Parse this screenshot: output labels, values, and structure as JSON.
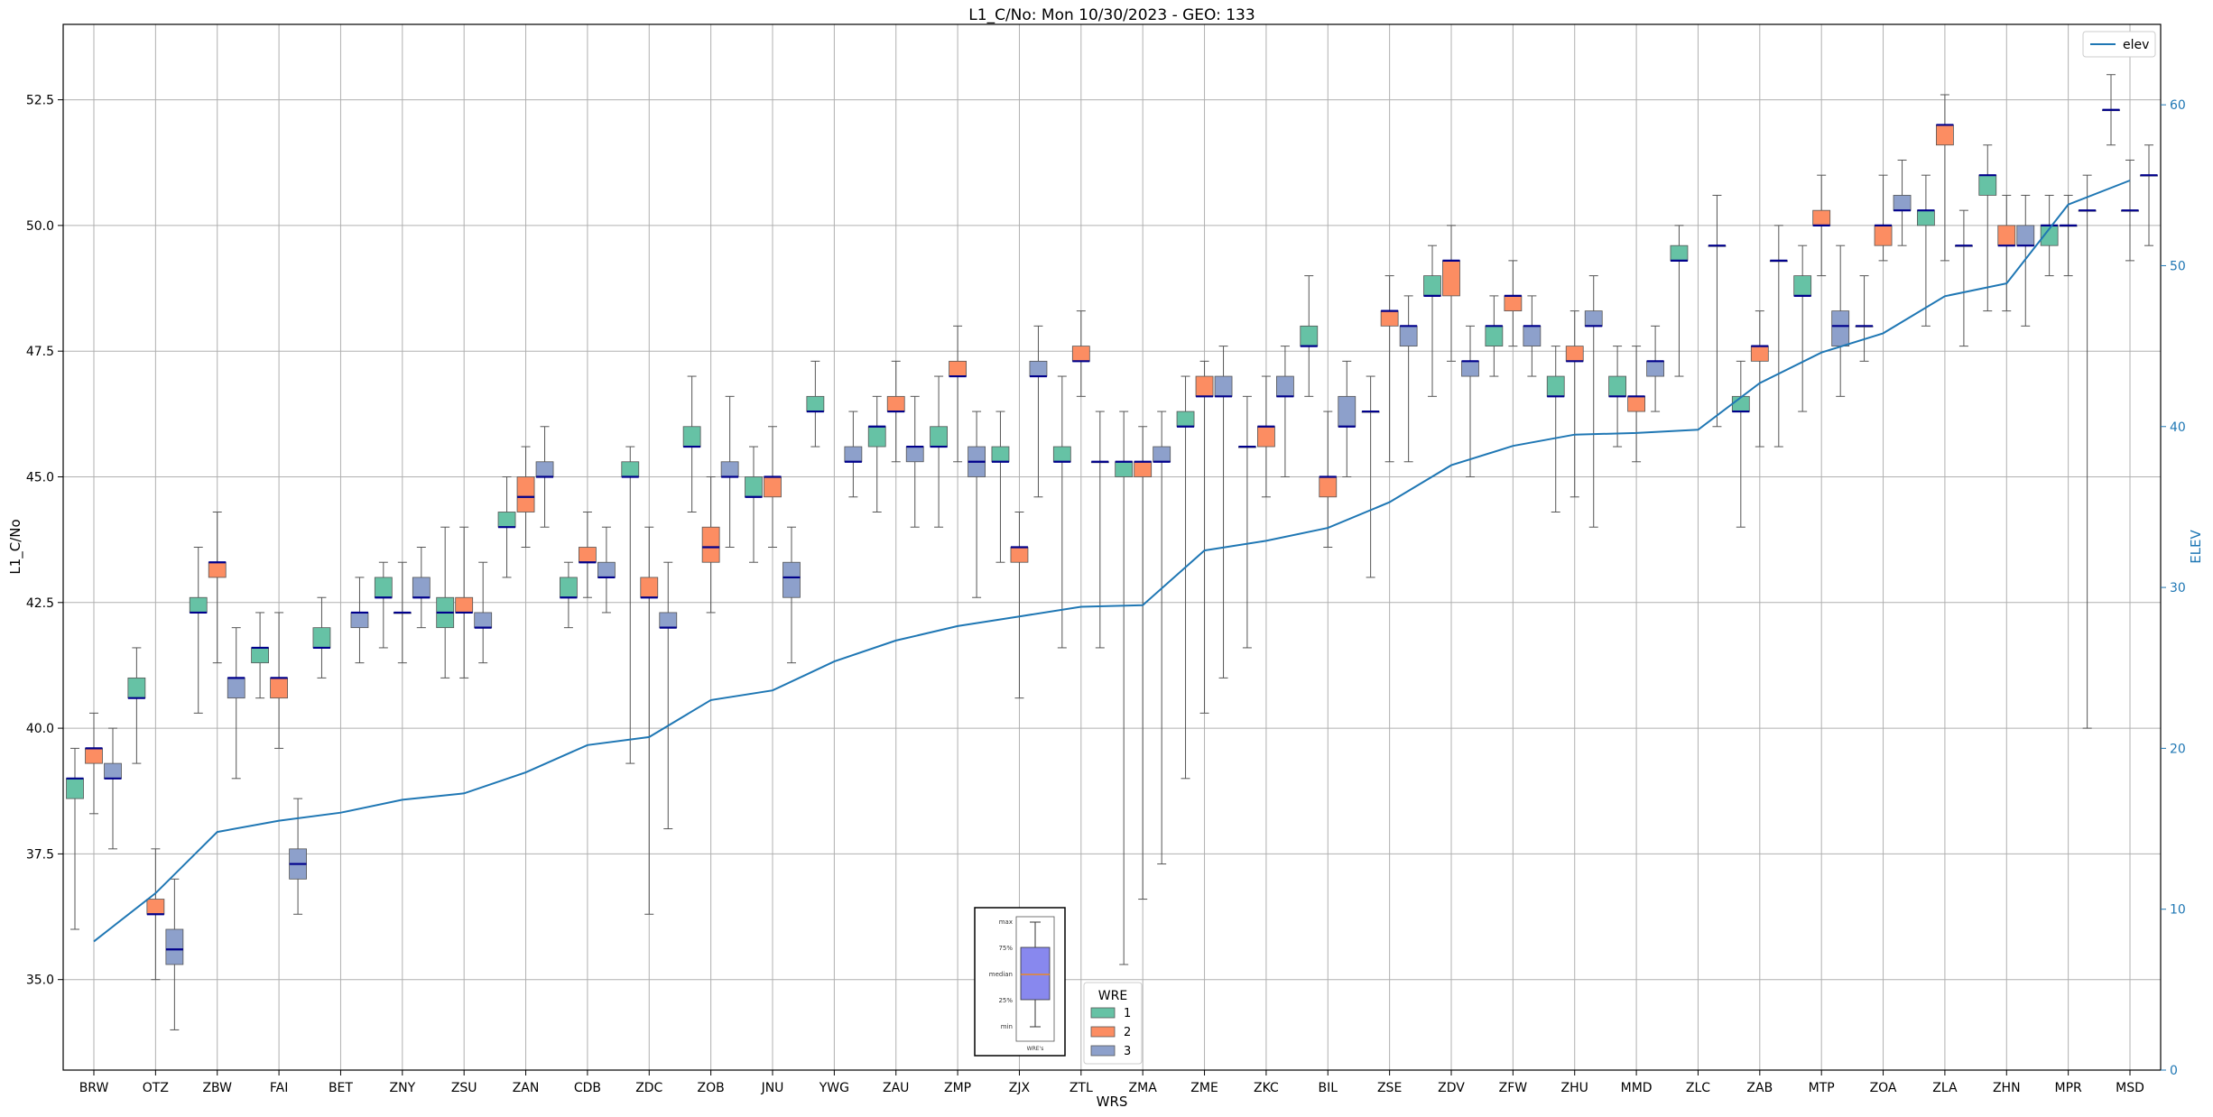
{
  "chart_data": {
    "type": "box",
    "title": "L1_C/No: Mon 10/30/2023 - GEO: 133",
    "xlabel": "WRS",
    "ylabel": "L1_C/No",
    "y2label": "ELEV",
    "ylim": [
      33.2,
      54.0
    ],
    "y2lim": [
      0,
      65
    ],
    "yticks": [
      "35.0",
      "37.5",
      "40.0",
      "42.5",
      "45.0",
      "47.5",
      "50.0",
      "52.5"
    ],
    "y2ticks": [
      "0",
      "10",
      "20",
      "30",
      "40",
      "50",
      "60"
    ],
    "grid": true,
    "categories": [
      "BRW",
      "OTZ",
      "ZBW",
      "FAI",
      "BET",
      "ZNY",
      "ZSU",
      "ZAN",
      "CDB",
      "ZDC",
      "ZOB",
      "JNU",
      "YWG",
      "ZAU",
      "ZMP",
      "ZJX",
      "ZTL",
      "ZMA",
      "ZME",
      "ZKC",
      "BIL",
      "ZSE",
      "ZDV",
      "ZFW",
      "ZHU",
      "MMD",
      "ZLC",
      "ZAB",
      "MTP",
      "ZOA",
      "ZLA",
      "ZHN",
      "MPR",
      "MSD"
    ],
    "legend": {
      "title": "WRE",
      "placement": "bottom-center",
      "entries": [
        {
          "label": "1",
          "color": "#66c2a5"
        },
        {
          "label": "2",
          "color": "#fc8d62"
        },
        {
          "label": "3",
          "color": "#8da0cb"
        }
      ]
    },
    "line_legend": {
      "label": "elev",
      "color": "#1f77b4",
      "placement": "top-right"
    },
    "inset_legend": {
      "labels": [
        "max",
        "75%",
        "median",
        "25%",
        "min"
      ],
      "xlabel": "WRE's",
      "fill": "#8888ee",
      "median_color": "#ff8800"
    },
    "boxes": [
      {
        "cat": "BRW",
        "wre": 1,
        "min": 36.0,
        "q1": 38.6,
        "med": 39.0,
        "q3": 39.0,
        "max": 39.6
      },
      {
        "cat": "BRW",
        "wre": 2,
        "min": 38.3,
        "q1": 39.3,
        "med": 39.6,
        "q3": 39.6,
        "max": 40.3
      },
      {
        "cat": "BRW",
        "wre": 3,
        "min": 37.6,
        "q1": 39.0,
        "med": 39.0,
        "q3": 39.3,
        "max": 40.0
      },
      {
        "cat": "OTZ",
        "wre": 1,
        "min": 39.3,
        "q1": 40.6,
        "med": 40.6,
        "q3": 41.0,
        "max": 41.6
      },
      {
        "cat": "OTZ",
        "wre": 2,
        "min": 35.0,
        "q1": 36.3,
        "med": 36.3,
        "q3": 36.6,
        "max": 37.6
      },
      {
        "cat": "OTZ",
        "wre": 3,
        "min": 34.0,
        "q1": 35.3,
        "med": 35.6,
        "q3": 36.0,
        "max": 37.0
      },
      {
        "cat": "ZBW",
        "wre": 1,
        "min": 40.3,
        "q1": 42.3,
        "med": 42.3,
        "q3": 42.6,
        "max": 43.6
      },
      {
        "cat": "ZBW",
        "wre": 2,
        "min": 41.3,
        "q1": 43.0,
        "med": 43.3,
        "q3": 43.3,
        "max": 44.3
      },
      {
        "cat": "ZBW",
        "wre": 3,
        "min": 39.0,
        "q1": 40.6,
        "med": 41.0,
        "q3": 41.0,
        "max": 42.0
      },
      {
        "cat": "FAI",
        "wre": 1,
        "min": 40.6,
        "q1": 41.3,
        "med": 41.6,
        "q3": 41.6,
        "max": 42.3
      },
      {
        "cat": "FAI",
        "wre": 2,
        "min": 39.6,
        "q1": 40.6,
        "med": 41.0,
        "q3": 41.0,
        "max": 42.3
      },
      {
        "cat": "FAI",
        "wre": 3,
        "min": 36.3,
        "q1": 37.0,
        "med": 37.3,
        "q3": 37.6,
        "max": 38.6
      },
      {
        "cat": "BET",
        "wre": 1,
        "min": 41.0,
        "q1": 41.6,
        "med": 41.6,
        "q3": 42.0,
        "max": 42.6
      },
      {
        "cat": "BET",
        "wre": 3,
        "min": 41.3,
        "q1": 42.0,
        "med": 42.3,
        "q3": 42.3,
        "max": 43.0
      },
      {
        "cat": "ZNY",
        "wre": 1,
        "min": 41.6,
        "q1": 42.6,
        "med": 42.6,
        "q3": 43.0,
        "max": 43.3
      },
      {
        "cat": "ZNY",
        "wre": 2,
        "min": 41.3,
        "q1": 42.3,
        "med": 42.3,
        "q3": 42.3,
        "max": 43.3
      },
      {
        "cat": "ZNY",
        "wre": 3,
        "min": 42.0,
        "q1": 42.6,
        "med": 42.6,
        "q3": 43.0,
        "max": 43.6
      },
      {
        "cat": "ZSU",
        "wre": 1,
        "min": 41.0,
        "q1": 42.0,
        "med": 42.3,
        "q3": 42.6,
        "max": 44.0
      },
      {
        "cat": "ZSU",
        "wre": 2,
        "min": 41.0,
        "q1": 42.3,
        "med": 42.3,
        "q3": 42.6,
        "max": 44.0
      },
      {
        "cat": "ZSU",
        "wre": 3,
        "min": 41.3,
        "q1": 42.0,
        "med": 42.0,
        "q3": 42.3,
        "max": 43.3
      },
      {
        "cat": "ZAN",
        "wre": 1,
        "min": 43.0,
        "q1": 44.0,
        "med": 44.0,
        "q3": 44.3,
        "max": 45.0
      },
      {
        "cat": "ZAN",
        "wre": 2,
        "min": 43.6,
        "q1": 44.3,
        "med": 44.6,
        "q3": 45.0,
        "max": 45.6
      },
      {
        "cat": "ZAN",
        "wre": 3,
        "min": 44.0,
        "q1": 45.0,
        "med": 45.0,
        "q3": 45.3,
        "max": 46.0
      },
      {
        "cat": "CDB",
        "wre": 1,
        "min": 42.0,
        "q1": 42.6,
        "med": 42.6,
        "q3": 43.0,
        "max": 43.3
      },
      {
        "cat": "CDB",
        "wre": 2,
        "min": 42.6,
        "q1": 43.3,
        "med": 43.3,
        "q3": 43.6,
        "max": 44.3
      },
      {
        "cat": "CDB",
        "wre": 3,
        "min": 42.3,
        "q1": 43.0,
        "med": 43.0,
        "q3": 43.3,
        "max": 44.0
      },
      {
        "cat": "ZDC",
        "wre": 1,
        "min": 39.3,
        "q1": 45.0,
        "med": 45.0,
        "q3": 45.3,
        "max": 45.6
      },
      {
        "cat": "ZDC",
        "wre": 2,
        "min": 36.3,
        "q1": 42.6,
        "med": 42.6,
        "q3": 43.0,
        "max": 44.0
      },
      {
        "cat": "ZDC",
        "wre": 3,
        "min": 38.0,
        "q1": 42.0,
        "med": 42.0,
        "q3": 42.3,
        "max": 43.3
      },
      {
        "cat": "ZOB",
        "wre": 1,
        "min": 44.3,
        "q1": 45.6,
        "med": 45.6,
        "q3": 46.0,
        "max": 47.0
      },
      {
        "cat": "ZOB",
        "wre": 2,
        "min": 42.3,
        "q1": 43.3,
        "med": 43.6,
        "q3": 44.0,
        "max": 45.0
      },
      {
        "cat": "ZOB",
        "wre": 3,
        "min": 43.6,
        "q1": 45.0,
        "med": 45.0,
        "q3": 45.3,
        "max": 46.6
      },
      {
        "cat": "JNU",
        "wre": 1,
        "min": 43.3,
        "q1": 44.6,
        "med": 44.6,
        "q3": 45.0,
        "max": 45.6
      },
      {
        "cat": "JNU",
        "wre": 2,
        "min": 43.6,
        "q1": 44.6,
        "med": 45.0,
        "q3": 45.0,
        "max": 46.0
      },
      {
        "cat": "JNU",
        "wre": 3,
        "min": 41.3,
        "q1": 42.6,
        "med": 43.0,
        "q3": 43.3,
        "max": 44.0
      },
      {
        "cat": "YWG",
        "wre": 1,
        "min": 45.6,
        "q1": 46.3,
        "med": 46.3,
        "q3": 46.6,
        "max": 47.3
      },
      {
        "cat": "YWG",
        "wre": 3,
        "min": 44.6,
        "q1": 45.3,
        "med": 45.3,
        "q3": 45.6,
        "max": 46.3
      },
      {
        "cat": "ZAU",
        "wre": 1,
        "min": 44.3,
        "q1": 45.6,
        "med": 46.0,
        "q3": 46.0,
        "max": 46.6
      },
      {
        "cat": "ZAU",
        "wre": 2,
        "min": 45.3,
        "q1": 46.3,
        "med": 46.3,
        "q3": 46.6,
        "max": 47.3
      },
      {
        "cat": "ZAU",
        "wre": 3,
        "min": 44.0,
        "q1": 45.3,
        "med": 45.6,
        "q3": 45.6,
        "max": 46.6
      },
      {
        "cat": "ZMP",
        "wre": 1,
        "min": 44.0,
        "q1": 45.6,
        "med": 45.6,
        "q3": 46.0,
        "max": 47.0
      },
      {
        "cat": "ZMP",
        "wre": 2,
        "min": 45.3,
        "q1": 47.0,
        "med": 47.0,
        "q3": 47.3,
        "max": 48.0
      },
      {
        "cat": "ZMP",
        "wre": 3,
        "min": 42.6,
        "q1": 45.0,
        "med": 45.3,
        "q3": 45.6,
        "max": 46.3
      },
      {
        "cat": "ZJX",
        "wre": 1,
        "min": 43.3,
        "q1": 45.3,
        "med": 45.3,
        "q3": 45.6,
        "max": 46.3
      },
      {
        "cat": "ZJX",
        "wre": 2,
        "min": 40.6,
        "q1": 43.3,
        "med": 43.6,
        "q3": 43.6,
        "max": 44.3
      },
      {
        "cat": "ZJX",
        "wre": 3,
        "min": 44.6,
        "q1": 47.0,
        "med": 47.0,
        "q3": 47.3,
        "max": 48.0
      },
      {
        "cat": "ZTL",
        "wre": 1,
        "min": 41.6,
        "q1": 45.3,
        "med": 45.3,
        "q3": 45.6,
        "max": 47.0
      },
      {
        "cat": "ZTL",
        "wre": 2,
        "min": 46.6,
        "q1": 47.3,
        "med": 47.3,
        "q3": 47.6,
        "max": 48.3
      },
      {
        "cat": "ZTL",
        "wre": 3,
        "min": 41.6,
        "q1": 45.3,
        "med": 45.3,
        "q3": 45.3,
        "max": 46.3
      },
      {
        "cat": "ZMA",
        "wre": 1,
        "min": 35.3,
        "q1": 45.0,
        "med": 45.3,
        "q3": 45.3,
        "max": 46.3
      },
      {
        "cat": "ZMA",
        "wre": 2,
        "min": 36.6,
        "q1": 45.0,
        "med": 45.3,
        "q3": 45.3,
        "max": 46.0
      },
      {
        "cat": "ZMA",
        "wre": 3,
        "min": 37.3,
        "q1": 45.3,
        "med": 45.3,
        "q3": 45.6,
        "max": 46.3
      },
      {
        "cat": "ZME",
        "wre": 1,
        "min": 39.0,
        "q1": 46.0,
        "med": 46.0,
        "q3": 46.3,
        "max": 47.0
      },
      {
        "cat": "ZME",
        "wre": 2,
        "min": 40.3,
        "q1": 46.6,
        "med": 46.6,
        "q3": 47.0,
        "max": 47.3
      },
      {
        "cat": "ZME",
        "wre": 3,
        "min": 41.0,
        "q1": 46.6,
        "med": 46.6,
        "q3": 47.0,
        "max": 47.6
      },
      {
        "cat": "ZKC",
        "wre": 1,
        "min": 41.6,
        "q1": 45.6,
        "med": 45.6,
        "q3": 45.6,
        "max": 46.6
      },
      {
        "cat": "ZKC",
        "wre": 2,
        "min": 44.6,
        "q1": 45.6,
        "med": 46.0,
        "q3": 46.0,
        "max": 47.0
      },
      {
        "cat": "ZKC",
        "wre": 3,
        "min": 45.0,
        "q1": 46.6,
        "med": 46.6,
        "q3": 47.0,
        "max": 47.6
      },
      {
        "cat": "BIL",
        "wre": 1,
        "min": 46.6,
        "q1": 47.6,
        "med": 47.6,
        "q3": 48.0,
        "max": 49.0
      },
      {
        "cat": "BIL",
        "wre": 2,
        "min": 43.6,
        "q1": 44.6,
        "med": 45.0,
        "q3": 45.0,
        "max": 46.3
      },
      {
        "cat": "BIL",
        "wre": 3,
        "min": 45.0,
        "q1": 46.0,
        "med": 46.0,
        "q3": 46.6,
        "max": 47.3
      },
      {
        "cat": "ZSE",
        "wre": 1,
        "min": 43.0,
        "q1": 46.3,
        "med": 46.3,
        "q3": 46.3,
        "max": 47.0
      },
      {
        "cat": "ZSE",
        "wre": 2,
        "min": 45.3,
        "q1": 48.0,
        "med": 48.3,
        "q3": 48.3,
        "max": 49.0
      },
      {
        "cat": "ZSE",
        "wre": 3,
        "min": 45.3,
        "q1": 47.6,
        "med": 48.0,
        "q3": 48.0,
        "max": 48.6
      },
      {
        "cat": "ZDV",
        "wre": 1,
        "min": 46.6,
        "q1": 48.6,
        "med": 48.6,
        "q3": 49.0,
        "max": 49.6
      },
      {
        "cat": "ZDV",
        "wre": 2,
        "min": 47.3,
        "q1": 48.6,
        "med": 49.3,
        "q3": 49.3,
        "max": 50.0
      },
      {
        "cat": "ZDV",
        "wre": 3,
        "min": 45.0,
        "q1": 47.0,
        "med": 47.3,
        "q3": 47.3,
        "max": 48.0
      },
      {
        "cat": "ZFW",
        "wre": 1,
        "min": 47.0,
        "q1": 47.6,
        "med": 48.0,
        "q3": 48.0,
        "max": 48.6
      },
      {
        "cat": "ZFW",
        "wre": 2,
        "min": 47.6,
        "q1": 48.3,
        "med": 48.6,
        "q3": 48.6,
        "max": 49.3
      },
      {
        "cat": "ZFW",
        "wre": 3,
        "min": 47.0,
        "q1": 47.6,
        "med": 48.0,
        "q3": 48.0,
        "max": 48.6
      },
      {
        "cat": "ZHU",
        "wre": 1,
        "min": 44.3,
        "q1": 46.6,
        "med": 46.6,
        "q3": 47.0,
        "max": 47.6
      },
      {
        "cat": "ZHU",
        "wre": 2,
        "min": 44.6,
        "q1": 47.3,
        "med": 47.3,
        "q3": 47.6,
        "max": 48.3
      },
      {
        "cat": "ZHU",
        "wre": 3,
        "min": 44.0,
        "q1": 48.0,
        "med": 48.0,
        "q3": 48.3,
        "max": 49.0
      },
      {
        "cat": "MMD",
        "wre": 1,
        "min": 45.6,
        "q1": 46.6,
        "med": 46.6,
        "q3": 47.0,
        "max": 47.6
      },
      {
        "cat": "MMD",
        "wre": 2,
        "min": 45.3,
        "q1": 46.3,
        "med": 46.6,
        "q3": 46.6,
        "max": 47.6
      },
      {
        "cat": "MMD",
        "wre": 3,
        "min": 46.3,
        "q1": 47.0,
        "med": 47.3,
        "q3": 47.3,
        "max": 48.0
      },
      {
        "cat": "ZLC",
        "wre": 1,
        "min": 47.0,
        "q1": 49.3,
        "med": 49.3,
        "q3": 49.6,
        "max": 50.0
      },
      {
        "cat": "ZLC",
        "wre": 3,
        "min": 46.0,
        "q1": 49.6,
        "med": 49.6,
        "q3": 49.6,
        "max": 50.6
      },
      {
        "cat": "ZAB",
        "wre": 1,
        "min": 44.0,
        "q1": 46.3,
        "med": 46.3,
        "q3": 46.6,
        "max": 47.3
      },
      {
        "cat": "ZAB",
        "wre": 2,
        "min": 45.6,
        "q1": 47.3,
        "med": 47.6,
        "q3": 47.6,
        "max": 48.3
      },
      {
        "cat": "ZAB",
        "wre": 3,
        "min": 45.6,
        "q1": 49.3,
        "med": 49.3,
        "q3": 49.3,
        "max": 50.0
      },
      {
        "cat": "MTP",
        "wre": 1,
        "min": 46.3,
        "q1": 48.6,
        "med": 48.6,
        "q3": 49.0,
        "max": 49.6
      },
      {
        "cat": "MTP",
        "wre": 2,
        "min": 49.0,
        "q1": 50.0,
        "med": 50.0,
        "q3": 50.3,
        "max": 51.0
      },
      {
        "cat": "MTP",
        "wre": 3,
        "min": 46.6,
        "q1": 47.6,
        "med": 48.0,
        "q3": 48.3,
        "max": 49.6
      },
      {
        "cat": "ZOA",
        "wre": 1,
        "min": 47.3,
        "q1": 48.0,
        "med": 48.0,
        "q3": 48.0,
        "max": 49.0
      },
      {
        "cat": "ZOA",
        "wre": 2,
        "min": 49.3,
        "q1": 49.6,
        "med": 50.0,
        "q3": 50.0,
        "max": 51.0
      },
      {
        "cat": "ZOA",
        "wre": 3,
        "min": 49.6,
        "q1": 50.3,
        "med": 50.3,
        "q3": 50.6,
        "max": 51.3
      },
      {
        "cat": "ZLA",
        "wre": 1,
        "min": 48.0,
        "q1": 50.0,
        "med": 50.3,
        "q3": 50.3,
        "max": 51.0
      },
      {
        "cat": "ZLA",
        "wre": 2,
        "min": 49.3,
        "q1": 51.6,
        "med": 52.0,
        "q3": 52.0,
        "max": 52.6
      },
      {
        "cat": "ZLA",
        "wre": 3,
        "min": 47.6,
        "q1": 49.6,
        "med": 49.6,
        "q3": 49.6,
        "max": 50.3
      },
      {
        "cat": "ZHN",
        "wre": 1,
        "min": 48.3,
        "q1": 50.6,
        "med": 51.0,
        "q3": 51.0,
        "max": 51.6
      },
      {
        "cat": "ZHN",
        "wre": 2,
        "min": 48.3,
        "q1": 49.6,
        "med": 49.6,
        "q3": 50.0,
        "max": 50.6
      },
      {
        "cat": "ZHN",
        "wre": 3,
        "min": 48.0,
        "q1": 49.6,
        "med": 49.6,
        "q3": 50.0,
        "max": 50.6
      },
      {
        "cat": "MPR",
        "wre": 1,
        "min": 49.0,
        "q1": 49.6,
        "med": 50.0,
        "q3": 50.0,
        "max": 50.6
      },
      {
        "cat": "MPR",
        "wre": 2,
        "min": 49.0,
        "q1": 50.0,
        "med": 50.0,
        "q3": 50.0,
        "max": 50.6
      },
      {
        "cat": "MPR",
        "wre": 3,
        "min": 40.0,
        "q1": 50.3,
        "med": 50.3,
        "q3": 50.3,
        "max": 51.0
      },
      {
        "cat": "MSD",
        "wre": 1,
        "min": 51.6,
        "q1": 52.3,
        "med": 52.3,
        "q3": 52.3,
        "max": 53.0
      },
      {
        "cat": "MSD",
        "wre": 2,
        "min": 49.3,
        "q1": 50.3,
        "med": 50.3,
        "q3": 50.3,
        "max": 51.3
      },
      {
        "cat": "MSD",
        "wre": 3,
        "min": 49.6,
        "q1": 51.0,
        "med": 51.0,
        "q3": 51.0,
        "max": 51.6
      }
    ],
    "elev_series": {
      "name": "elev",
      "values": [
        8.0,
        11.0,
        14.8,
        15.5,
        16.0,
        16.8,
        17.2,
        18.5,
        20.2,
        20.7,
        23.0,
        23.6,
        25.4,
        26.7,
        27.6,
        28.2,
        28.8,
        28.9,
        32.3,
        32.9,
        33.7,
        35.3,
        37.6,
        38.8,
        39.5,
        39.6,
        39.8,
        42.7,
        44.6,
        45.8,
        48.1,
        48.9,
        53.8,
        55.3
      ]
    }
  }
}
